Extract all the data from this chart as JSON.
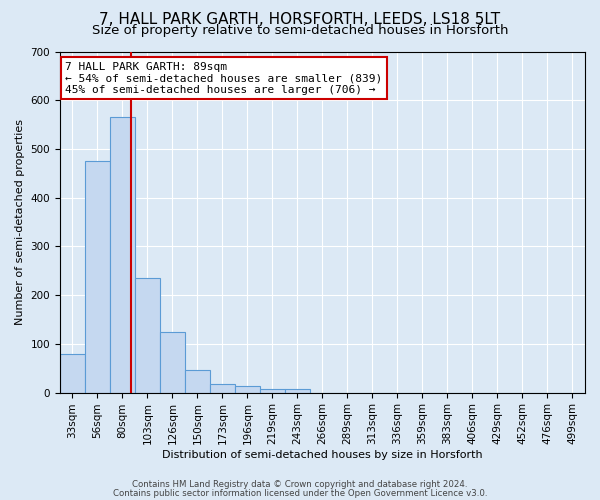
{
  "title_line1": "7, HALL PARK GARTH, HORSFORTH, LEEDS, LS18 5LT",
  "title_line2": "Size of property relative to semi-detached houses in Horsforth",
  "xlabel": "Distribution of semi-detached houses by size in Horsforth",
  "ylabel": "Number of semi-detached properties",
  "bar_labels": [
    "33sqm",
    "56sqm",
    "80sqm",
    "103sqm",
    "126sqm",
    "150sqm",
    "173sqm",
    "196sqm",
    "219sqm",
    "243sqm",
    "266sqm",
    "289sqm",
    "313sqm",
    "336sqm",
    "359sqm",
    "383sqm",
    "406sqm",
    "429sqm",
    "452sqm",
    "476sqm",
    "499sqm"
  ],
  "bar_values": [
    80,
    475,
    565,
    235,
    125,
    47,
    17,
    13,
    8,
    7,
    0,
    0,
    0,
    0,
    0,
    0,
    0,
    0,
    0,
    0,
    0
  ],
  "bar_color": "#c5d8f0",
  "bar_edge_color": "#5b9bd5",
  "bar_edge_width": 0.8,
  "red_line_x": 2.33,
  "red_line_color": "#cc0000",
  "annotation_line1": "7 HALL PARK GARTH: 89sqm",
  "annotation_line2": "← 54% of semi-detached houses are smaller (839)",
  "annotation_line3": "45% of semi-detached houses are larger (706) →",
  "annotation_box_color": "#ffffff",
  "annotation_box_edge": "#cc0000",
  "ylim": [
    0,
    700
  ],
  "yticks": [
    0,
    100,
    200,
    300,
    400,
    500,
    600,
    700
  ],
  "bg_color": "#dce9f5",
  "plot_bg_color": "#dce9f5",
  "footer_line1": "Contains HM Land Registry data © Crown copyright and database right 2024.",
  "footer_line2": "Contains public sector information licensed under the Open Government Licence v3.0.",
  "title_fontsize": 11,
  "subtitle_fontsize": 9.5,
  "axis_label_fontsize": 8,
  "tick_fontsize": 7.5,
  "annotation_fontsize": 8
}
